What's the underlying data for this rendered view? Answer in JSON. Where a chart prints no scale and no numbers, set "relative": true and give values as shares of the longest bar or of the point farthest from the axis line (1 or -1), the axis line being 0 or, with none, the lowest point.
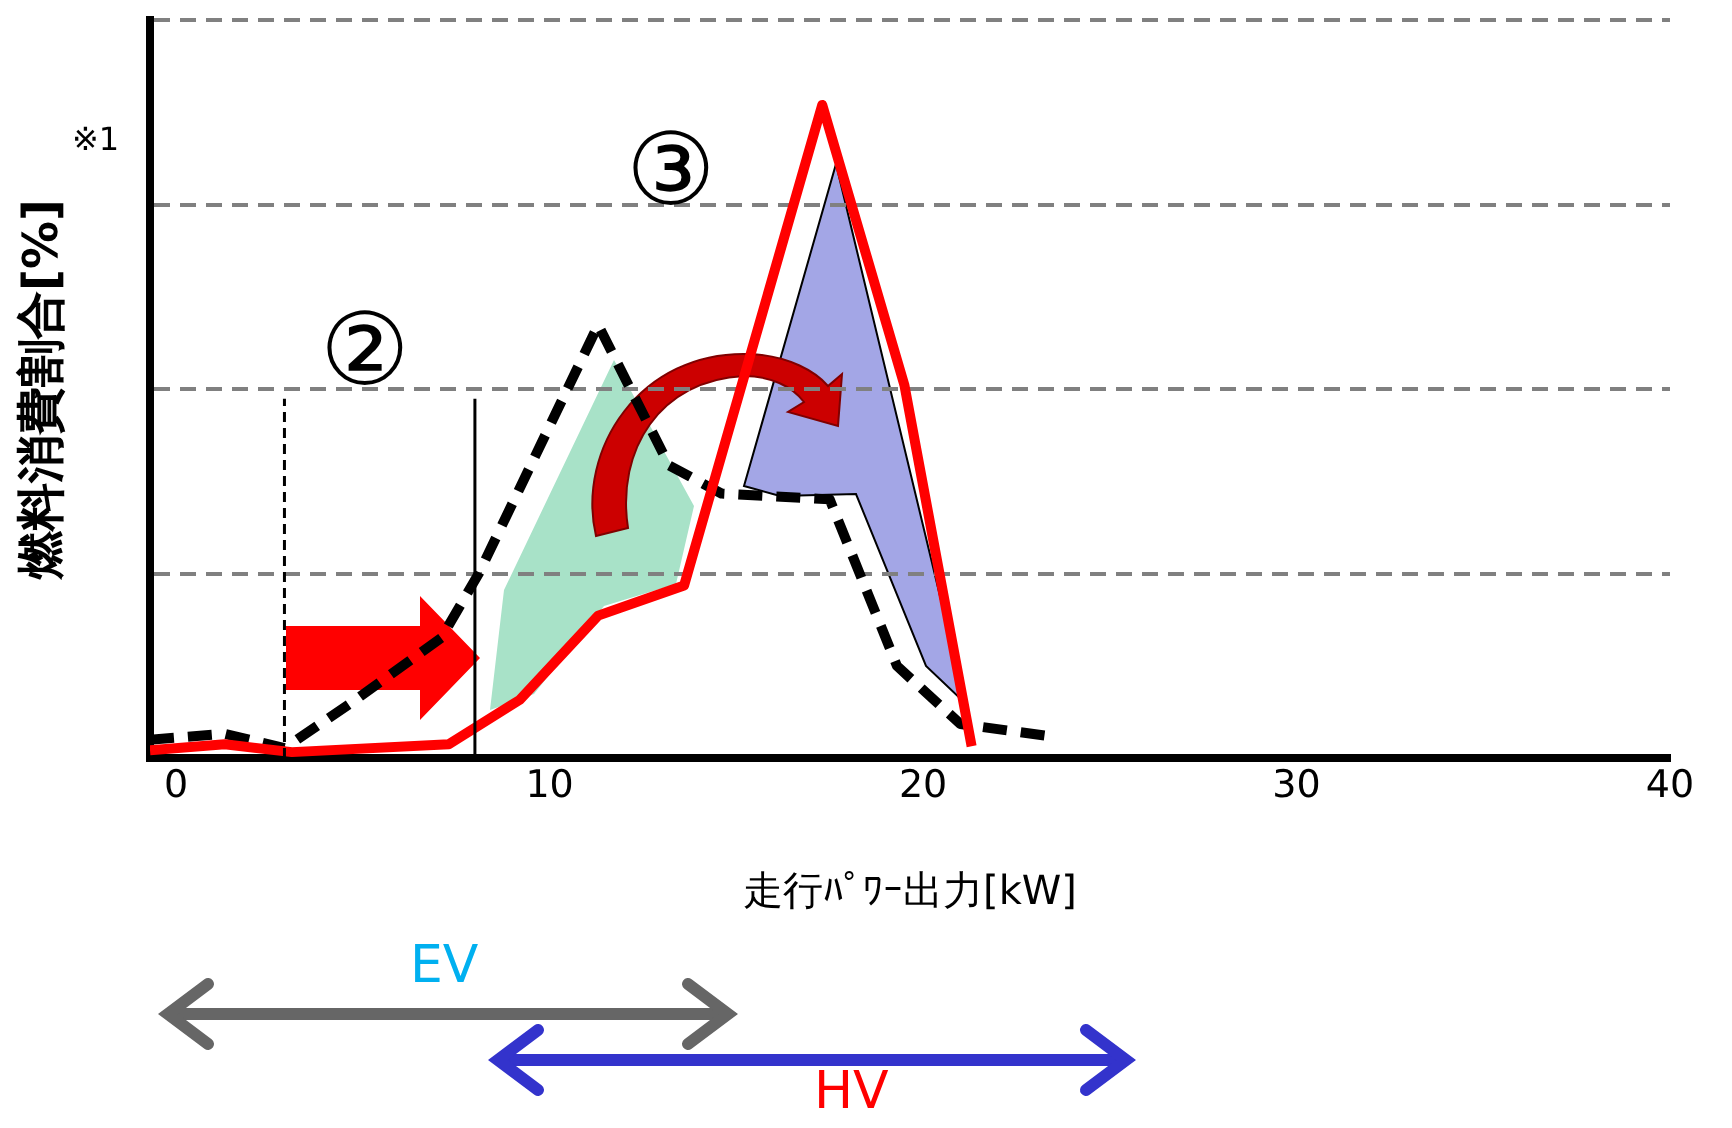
{
  "chart_data": {
    "type": "line",
    "relative": true,
    "xlabel": "走行ﾊﾟﾜｰ出力[kW]",
    "ylabel": "燃料消費割合[%]",
    "xlim": [
      -0.7,
      40
    ],
    "xticks": [
      0,
      10,
      20,
      30,
      40
    ],
    "grid": "y",
    "legend": false,
    "marker": "none",
    "series": [
      {
        "color": "#ff0000",
        "line_style": "solid",
        "x": [
          -0.7,
          1.3,
          3.1,
          7.3,
          9.2,
          11.3,
          13.6,
          17.3,
          19.5,
          21.3
        ],
        "values": [
          0.012,
          0.021,
          0.009,
          0.021,
          0.089,
          0.218,
          0.264,
          1,
          0.571,
          0.018
        ]
      },
      {
        "color": "#000000",
        "line_style": "dashed",
        "x": [
          -0.7,
          1.3,
          2.9,
          4.8,
          7.1,
          8.1,
          11.3,
          13.2,
          14.6,
          17.5,
          19.3,
          21.0,
          23.3
        ],
        "values": [
          0.028,
          0.037,
          0.015,
          0.089,
          0.184,
          0.282,
          0.663,
          0.448,
          0.405,
          0.396,
          0.141,
          0.052,
          0.034
        ]
      }
    ],
    "ref_lines": [
      {
        "axis": "x",
        "value": 2.9,
        "line_style": "dashed",
        "color": "#000000"
      },
      {
        "axis": "x",
        "value": 8.0,
        "line_style": "solid",
        "color": "#000000"
      }
    ],
    "annotations": [
      "②",
      "③",
      "※1",
      "EV",
      "HV"
    ]
  }
}
